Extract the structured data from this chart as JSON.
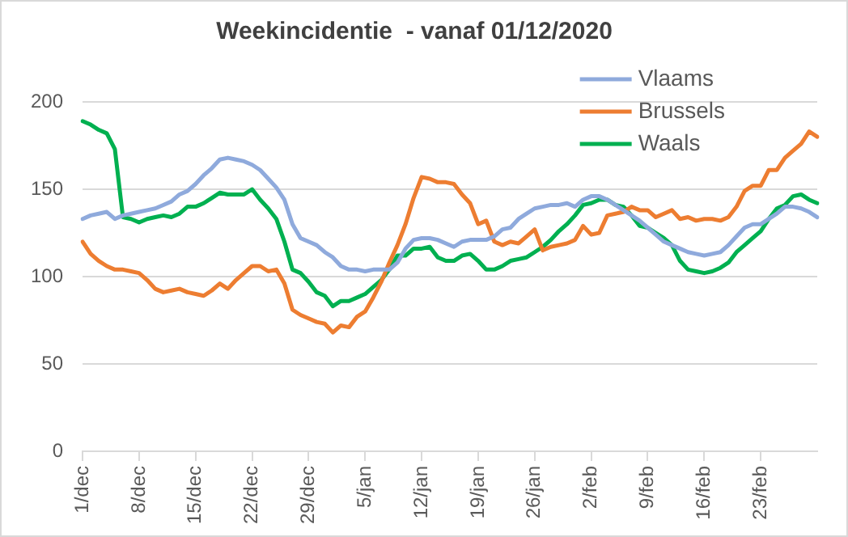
{
  "chart_data": {
    "type": "line",
    "title": "Weekincidentie  - vanaf 01/12/2020",
    "categories": [
      "1/dec",
      null,
      null,
      null,
      null,
      null,
      null,
      "8/dec",
      null,
      null,
      null,
      null,
      null,
      null,
      "15/dec",
      null,
      null,
      null,
      null,
      null,
      null,
      "22/dec",
      null,
      null,
      null,
      null,
      null,
      null,
      "29/dec",
      null,
      null,
      null,
      null,
      null,
      null,
      "5/jan",
      null,
      null,
      null,
      null,
      null,
      null,
      "12/jan",
      null,
      null,
      null,
      null,
      null,
      null,
      "19/jan",
      null,
      null,
      null,
      null,
      null,
      null,
      "26/jan",
      null,
      null,
      null,
      null,
      null,
      null,
      "2/feb",
      null,
      null,
      null,
      null,
      null,
      null,
      "9/feb",
      null,
      null,
      null,
      null,
      null,
      null,
      "16/feb",
      null,
      null,
      null,
      null,
      null,
      null,
      "23/feb",
      null,
      null,
      null,
      null,
      null,
      null,
      null
    ],
    "series": [
      {
        "name": "Vlaams",
        "color": "#8faadc",
        "values": [
          133,
          135,
          136,
          137,
          133,
          135,
          136,
          137,
          138,
          139,
          141,
          143,
          147,
          149,
          153,
          158,
          162,
          167,
          168,
          167,
          166,
          164,
          161,
          156,
          151,
          144,
          130,
          122,
          120,
          118,
          114,
          111,
          106,
          104,
          104,
          103,
          104,
          104,
          104,
          108,
          116,
          121,
          122,
          122,
          121,
          119,
          117,
          120,
          121,
          121,
          121,
          123,
          127,
          128,
          133,
          136,
          139,
          140,
          141,
          141,
          142,
          140,
          144,
          146,
          146,
          144,
          141,
          138,
          135,
          132,
          128,
          124,
          120,
          118,
          116,
          114,
          113,
          112,
          113,
          114,
          118,
          123,
          128,
          130,
          130,
          133,
          136,
          140,
          140,
          139,
          137,
          134
        ]
      },
      {
        "name": "Brussels",
        "color": "#ed7d31",
        "values": [
          120,
          113,
          109,
          106,
          104,
          104,
          103,
          102,
          98,
          93,
          91,
          92,
          93,
          91,
          90,
          89,
          92,
          96,
          93,
          98,
          102,
          106,
          106,
          103,
          104,
          96,
          81,
          78,
          76,
          74,
          73,
          68,
          72,
          71,
          77,
          80,
          88,
          97,
          108,
          118,
          130,
          145,
          157,
          156,
          154,
          154,
          153,
          147,
          142,
          130,
          132,
          120,
          118,
          120,
          119,
          123,
          127,
          115,
          117,
          118,
          119,
          121,
          129,
          124,
          125,
          135,
          136,
          137,
          140,
          138,
          138,
          134,
          136,
          138,
          133,
          134,
          132,
          133,
          133,
          132,
          134,
          140,
          149,
          152,
          152,
          161,
          161,
          168,
          172,
          176,
          183,
          180
        ]
      },
      {
        "name": "Waals",
        "color": "#00b050",
        "values": [
          189,
          187,
          184,
          182,
          173,
          134,
          133,
          131,
          133,
          134,
          135,
          134,
          136,
          140,
          140,
          142,
          145,
          148,
          147,
          147,
          147,
          150,
          144,
          139,
          133,
          120,
          104,
          102,
          97,
          91,
          89,
          83,
          86,
          86,
          88,
          90,
          94,
          98,
          104,
          112,
          112,
          116,
          116,
          117,
          111,
          109,
          109,
          112,
          113,
          109,
          104,
          104,
          106,
          109,
          110,
          111,
          114,
          117,
          121,
          126,
          130,
          135,
          141,
          142,
          144,
          144,
          141,
          140,
          135,
          129,
          128,
          125,
          122,
          118,
          109,
          104,
          103,
          102,
          103,
          105,
          108,
          114,
          118,
          122,
          126,
          133,
          139,
          141,
          146,
          147,
          144,
          142
        ]
      }
    ],
    "ylim": [
      0,
      200
    ],
    "yticks": [
      0,
      50,
      100,
      150,
      200
    ],
    "grid": "y",
    "legend": "top right",
    "marker": "none",
    "line_style": "solid"
  }
}
